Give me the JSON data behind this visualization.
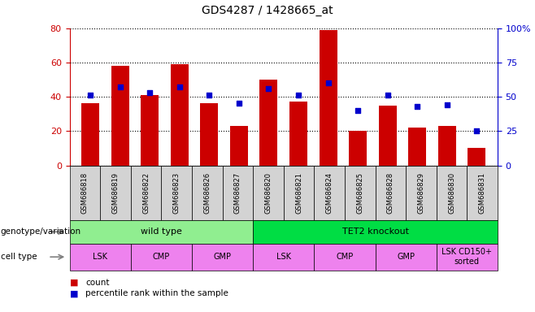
{
  "title": "GDS4287 / 1428665_at",
  "samples": [
    "GSM686818",
    "GSM686819",
    "GSM686822",
    "GSM686823",
    "GSM686826",
    "GSM686827",
    "GSM686820",
    "GSM686821",
    "GSM686824",
    "GSM686825",
    "GSM686828",
    "GSM686829",
    "GSM686830",
    "GSM686831"
  ],
  "counts": [
    36,
    58,
    41,
    59,
    36,
    23,
    50,
    37,
    79,
    20,
    35,
    22,
    23,
    10
  ],
  "percentiles": [
    51,
    57,
    53,
    57,
    51,
    45,
    56,
    51,
    60,
    40,
    51,
    43,
    44,
    25
  ],
  "bar_color": "#cc0000",
  "dot_color": "#0000cc",
  "ylim_left": [
    0,
    80
  ],
  "ylim_right": [
    0,
    100
  ],
  "yticks_left": [
    0,
    20,
    40,
    60,
    80
  ],
  "yticks_right": [
    0,
    25,
    50,
    75,
    100
  ],
  "ytick_labels_right": [
    "0",
    "25",
    "50",
    "75",
    "100%"
  ],
  "genotype_groups": [
    {
      "label": "wild type",
      "start": 0,
      "end": 6,
      "color": "#90ee90"
    },
    {
      "label": "TET2 knockout",
      "start": 6,
      "end": 14,
      "color": "#00dd44"
    }
  ],
  "cell_type_groups": [
    {
      "label": "LSK",
      "start": 0,
      "end": 2
    },
    {
      "label": "CMP",
      "start": 2,
      "end": 4
    },
    {
      "label": "GMP",
      "start": 4,
      "end": 6
    },
    {
      "label": "LSK",
      "start": 6,
      "end": 8
    },
    {
      "label": "CMP",
      "start": 8,
      "end": 10
    },
    {
      "label": "GMP",
      "start": 10,
      "end": 12
    },
    {
      "label": "LSK CD150+\nsorted",
      "start": 12,
      "end": 14
    }
  ],
  "cell_type_color": "#ee82ee",
  "legend_items": [
    {
      "label": "count",
      "color": "#cc0000"
    },
    {
      "label": "percentile rank within the sample",
      "color": "#0000cc"
    }
  ],
  "label_row1": "genotype/variation",
  "label_row2": "cell type",
  "xticklabel_bg": "#d3d3d3"
}
